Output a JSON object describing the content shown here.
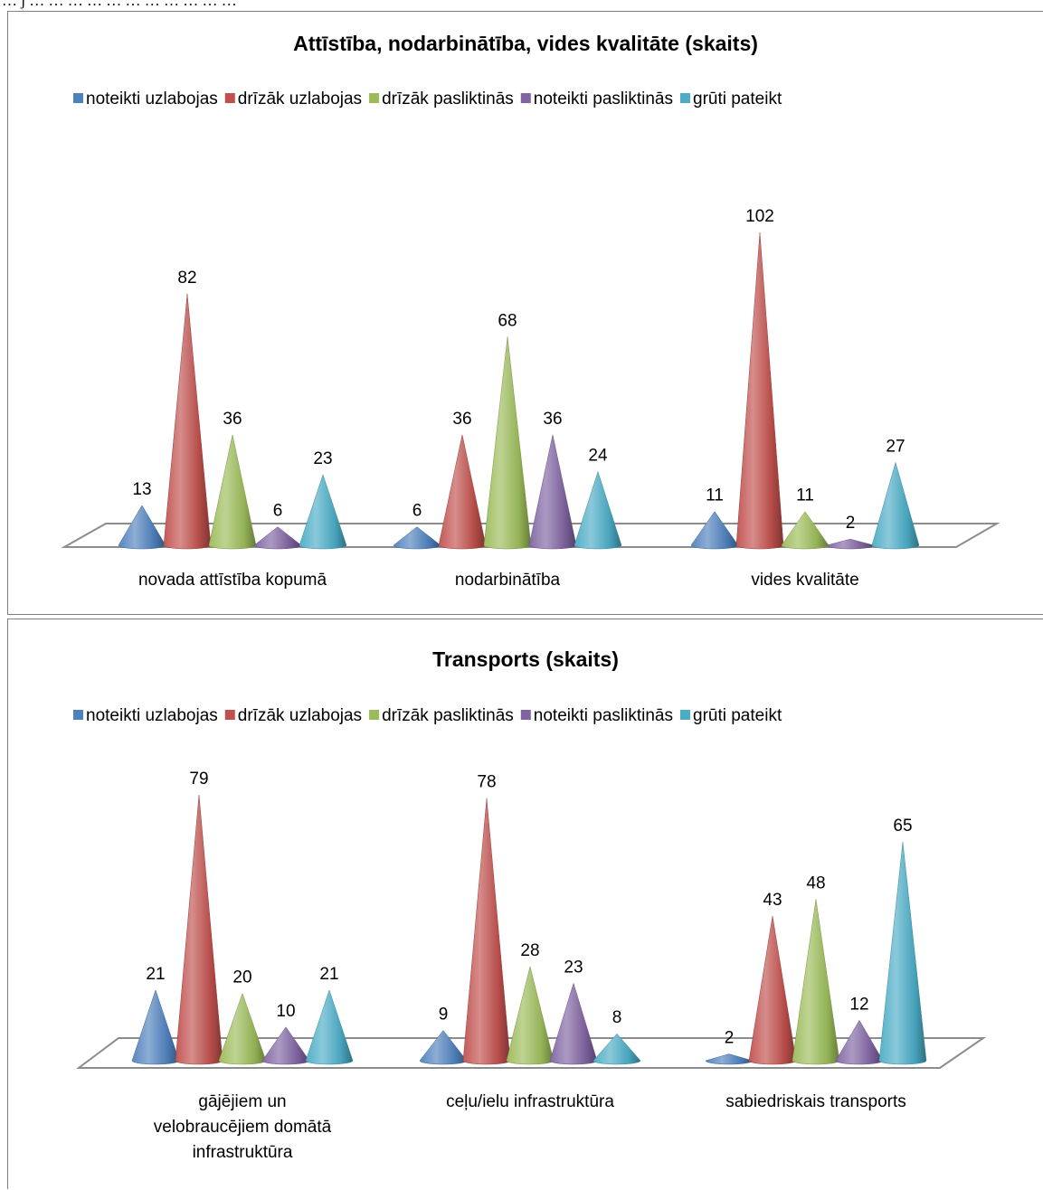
{
  "top_text": "… j … … … … … … … … … … …",
  "colors": {
    "noteikti uzlabojas": "#4F81BD",
    "drīzāk uzlabojas": "#C0504D",
    "drīzāk pasliktinās": "#9BBB59",
    "noteikti pasliktinās": "#8064A2",
    "grūti pateikt": "#4BACC6"
  },
  "chart_data": [
    {
      "type": "bar",
      "style": "3d-cone",
      "title": "Attīstība, nodarbinātība, vides kvalitāte (skaits)",
      "legend_position": "top",
      "categories": [
        "novada attīstība kopumā",
        "nodarbinātība",
        "vides kvalitāte"
      ],
      "ylim": [
        0,
        102
      ],
      "series": [
        {
          "name": "noteikti uzlabojas",
          "values": [
            13,
            6,
            11
          ]
        },
        {
          "name": "drīzāk uzlabojas",
          "values": [
            82,
            36,
            102
          ]
        },
        {
          "name": "drīzāk pasliktinās",
          "values": [
            36,
            68,
            11
          ]
        },
        {
          "name": "noteikti pasliktinās",
          "values": [
            6,
            36,
            2
          ]
        },
        {
          "name": "grūti pateikt",
          "values": [
            23,
            24,
            27
          ]
        }
      ]
    },
    {
      "type": "bar",
      "style": "3d-cone",
      "title": "Transports (skaits)",
      "legend_position": "top",
      "categories": [
        "gājējiem un velobraucējiem domātā infrastruktūra",
        "ceļu/ielu infrastruktūra",
        "sabiedriskais transports"
      ],
      "ylim": [
        0,
        79
      ],
      "series": [
        {
          "name": "noteikti uzlabojas",
          "values": [
            21,
            9,
            2
          ]
        },
        {
          "name": "drīzāk uzlabojas",
          "values": [
            79,
            78,
            43
          ]
        },
        {
          "name": "drīzāk pasliktinās",
          "values": [
            20,
            28,
            48
          ]
        },
        {
          "name": "noteikti pasliktinās",
          "values": [
            10,
            23,
            12
          ]
        },
        {
          "name": "grūti pateikt",
          "values": [
            21,
            8,
            65
          ]
        }
      ]
    }
  ]
}
